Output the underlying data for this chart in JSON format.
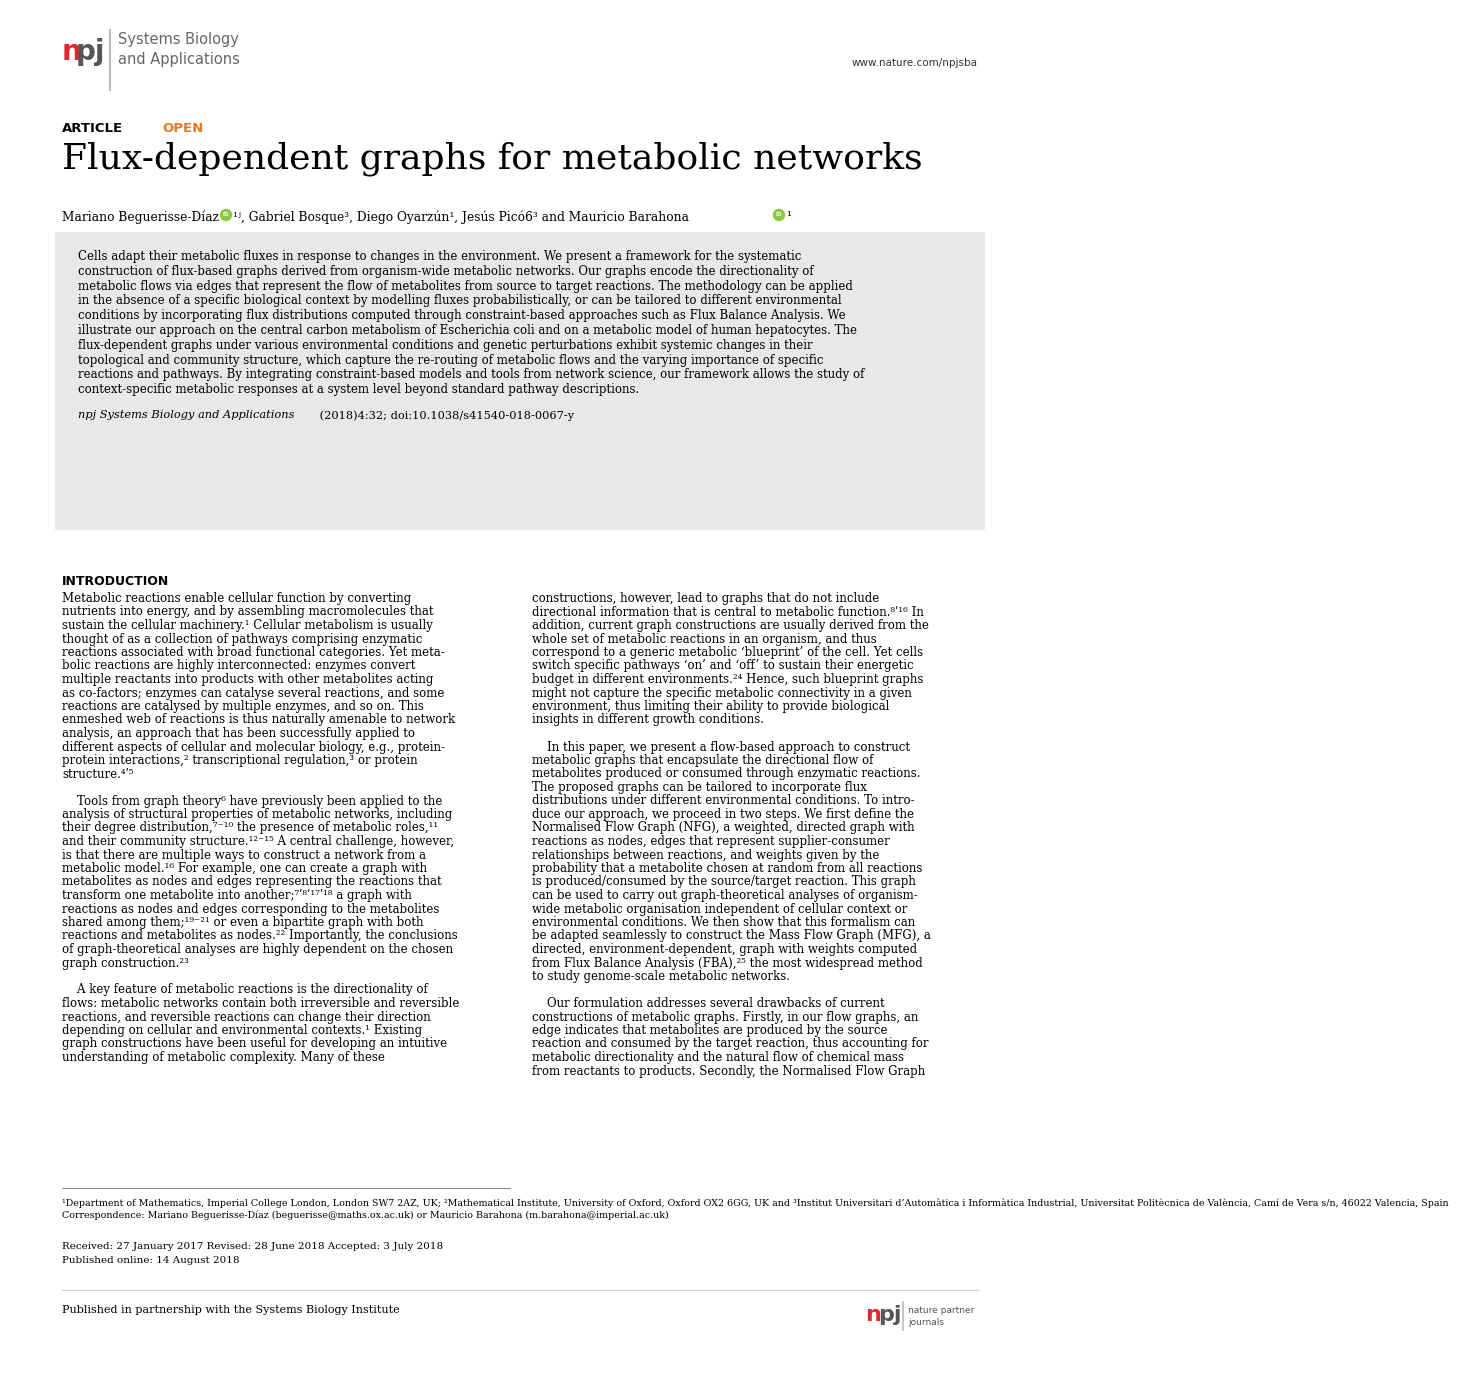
{
  "background_color": "#ffffff",
  "npj_color": "#e0282e",
  "journal_color": "#666666",
  "website": "www.nature.com/npjsba",
  "article_label": "ARTICLE",
  "open_label": "OPEN",
  "open_color": "#e87722",
  "title": "Flux-dependent graphs for metabolic networks",
  "abstract_bg": "#e8e8e8",
  "citation_italic": "npj Systems Biology and Applications",
  "citation_rest": " (2018)4:32; doi:10.1038/s41540-018-0067-y",
  "intro_header": "INTRODUCTION",
  "footnote1": "¹Department of Mathematics, Imperial College London, London SW7 2AZ, UK; ²Mathematical Institute, University of Oxford, Oxford OX2 6GG, UK and ³Institut Universitari d’Automàtica i Informàtica Industrial, Universitat Politècnica de València, Camí de Vera s/n, 46022 Valencia, Spain",
  "footnote2": "Correspondence: Mariano Beguerisse-Díaz (beguerisse@maths.ox.ac.uk) or Mauricio Barahona (m.barahona@imperial.ac.uk)",
  "received": "Received: 27 January 2017 Revised: 28 June 2018 Accepted: 3 July 2018",
  "published_online": "Published online: 14 August 2018",
  "published_partnership": "Published in partnership with the Systems Biology Institute",
  "abstract_lines": [
    "Cells adapt their metabolic fluxes in response to changes in the environment. We present a framework for the systematic",
    "construction of flux-based graphs derived from organism-wide metabolic networks. Our graphs encode the directionality of",
    "metabolic flows via edges that represent the flow of metabolites from source to target reactions. The methodology can be applied",
    "in the absence of a specific biological context by modelling fluxes probabilistically, or can be tailored to different environmental",
    "conditions by incorporating flux distributions computed through constraint-based approaches such as Flux Balance Analysis. We",
    "illustrate our approach on the central carbon metabolism of Escherichia coli and on a metabolic model of human hepatocytes. The",
    "flux-dependent graphs under various environmental conditions and genetic perturbations exhibit systemic changes in their",
    "topological and community structure, which capture the re-routing of metabolic flows and the varying importance of specific",
    "reactions and pathways. By integrating constraint-based models and tools from network science, our framework allows the study of",
    "context-specific metabolic responses at a system level beyond standard pathway descriptions."
  ],
  "col1_lines": [
    "Metabolic reactions enable cellular function by converting",
    "nutrients into energy, and by assembling macromolecules that",
    "sustain the cellular machinery.¹ Cellular metabolism is usually",
    "thought of as a collection of pathways comprising enzymatic",
    "reactions associated with broad functional categories. Yet meta-",
    "bolic reactions are highly interconnected: enzymes convert",
    "multiple reactants into products with other metabolites acting",
    "as co-factors; enzymes can catalyse several reactions, and some",
    "reactions are catalysed by multiple enzymes, and so on. This",
    "enmeshed web of reactions is thus naturally amenable to network",
    "analysis, an approach that has been successfully applied to",
    "different aspects of cellular and molecular biology, e.g., protein-",
    "protein interactions,² transcriptional regulation,³ or protein",
    "structure.⁴ʹ⁵",
    "",
    "    Tools from graph theory⁶ have previously been applied to the",
    "analysis of structural properties of metabolic networks, including",
    "their degree distribution,⁷⁻¹⁰ the presence of metabolic roles,¹¹",
    "and their community structure.¹²⁻¹⁵ A central challenge, however,",
    "is that there are multiple ways to construct a network from a",
    "metabolic model.¹⁶ For example, one can create a graph with",
    "metabolites as nodes and edges representing the reactions that",
    "transform one metabolite into another;⁷ʹ⁸ʹ¹⁷ʹ¹⁸ a graph with",
    "reactions as nodes and edges corresponding to the metabolites",
    "shared among them;¹⁹⁻²¹ or even a bipartite graph with both",
    "reactions and metabolites as nodes.²² Importantly, the conclusions",
    "of graph-theoretical analyses are highly dependent on the chosen",
    "graph construction.²³",
    "",
    "    A key feature of metabolic reactions is the directionality of",
    "flows: metabolic networks contain both irreversible and reversible",
    "reactions, and reversible reactions can change their direction",
    "depending on cellular and environmental contexts.¹ Existing",
    "graph constructions have been useful for developing an intuitive",
    "understanding of metabolic complexity. Many of these"
  ],
  "col2_lines": [
    "constructions, however, lead to graphs that do not include",
    "directional information that is central to metabolic function.⁸ʹ¹⁶ In",
    "addition, current graph constructions are usually derived from the",
    "whole set of metabolic reactions in an organism, and thus",
    "correspond to a generic metabolic ‘blueprint’ of the cell. Yet cells",
    "switch specific pathways ‘on’ and ‘off’ to sustain their energetic",
    "budget in different environments.²⁴ Hence, such blueprint graphs",
    "might not capture the specific metabolic connectivity in a given",
    "environment, thus limiting their ability to provide biological",
    "insights in different growth conditions.",
    "",
    "    In this paper, we present a flow-based approach to construct",
    "metabolic graphs that encapsulate the directional flow of",
    "metabolites produced or consumed through enzymatic reactions.",
    "The proposed graphs can be tailored to incorporate flux",
    "distributions under different environmental conditions. To intro-",
    "duce our approach, we proceed in two steps. We first define the",
    "Normalised Flow Graph (NFG), a weighted, directed graph with",
    "reactions as nodes, edges that represent supplier-consumer",
    "relationships between reactions, and weights given by the",
    "probability that a metabolite chosen at random from all reactions",
    "is produced/consumed by the source/target reaction. This graph",
    "can be used to carry out graph-theoretical analyses of organism-",
    "wide metabolic organisation independent of cellular context or",
    "environmental conditions. We then show that this formalism can",
    "be adapted seamlessly to construct the Mass Flow Graph (MFG), a",
    "directed, environment-dependent, graph with weights computed",
    "from Flux Balance Analysis (FBA),²⁵ the most widespread method",
    "to study genome-scale metabolic networks.",
    "",
    "    Our formulation addresses several drawbacks of current",
    "constructions of metabolic graphs. Firstly, in our flow graphs, an",
    "edge indicates that metabolites are produced by the source",
    "reaction and consumed by the target reaction, thus accounting for",
    "metabolic directionality and the natural flow of chemical mass",
    "from reactants to products. Secondly, the Normalised Flow Graph"
  ]
}
